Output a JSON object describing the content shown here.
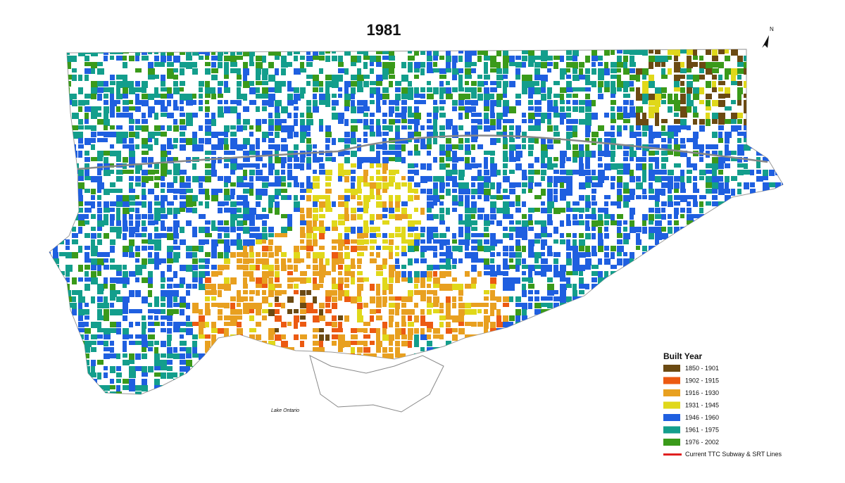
{
  "title": "1981",
  "north_label": "N",
  "legend": {
    "title": "Built Year",
    "items": [
      {
        "label": "1850 - 1901",
        "color": "#6b4a12"
      },
      {
        "label": "1902 - 1915",
        "color": "#ec5a12"
      },
      {
        "label": "1916 - 1930",
        "color": "#e8a020"
      },
      {
        "label": "1931 - 1945",
        "color": "#e0d81a"
      },
      {
        "label": "1946 - 1960",
        "color": "#1f5fe0"
      },
      {
        "label": "1961 - 1975",
        "color": "#139e8c"
      },
      {
        "label": "1976 - 2002",
        "color": "#3a9a1a"
      }
    ],
    "line_item": {
      "label": "Current TTC Subway & SRT Lines",
      "color": "#e02020"
    }
  },
  "annotations": {
    "lake": "Lake Ontario"
  }
}
